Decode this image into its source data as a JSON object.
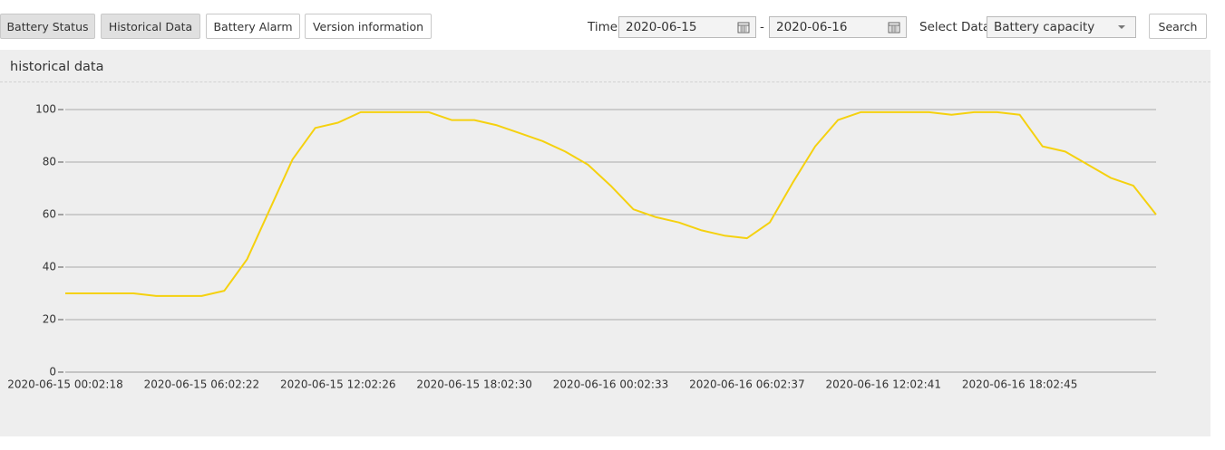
{
  "tabs": [
    "Battery Status",
    "Historical Data",
    "Battery Alarm",
    "Version information"
  ],
  "filters": {
    "time_label": "Time",
    "start_date": "2020-06-15",
    "separator": "-",
    "end_date": "2020-06-16",
    "select_label": "Select Data",
    "selected": "Battery capacity",
    "search": "Search"
  },
  "panel_title": "historical data",
  "chart_data": {
    "type": "line",
    "color": "#f5d10f",
    "grid": true,
    "categories": [
      "2020-06-15 00:02:18",
      null,
      null,
      null,
      null,
      null,
      "2020-06-15 06:02:22",
      null,
      null,
      null,
      null,
      null,
      "2020-06-15 12:02:26",
      null,
      null,
      null,
      null,
      null,
      "2020-06-15 18:02:30",
      null,
      null,
      null,
      null,
      null,
      "2020-06-16 00:02:33",
      null,
      null,
      null,
      null,
      null,
      "2020-06-16 06:02:37",
      null,
      null,
      null,
      null,
      null,
      "2020-06-16 12:02:41",
      null,
      null,
      null,
      null,
      null,
      "2020-06-16 18:02:45",
      null,
      null,
      null,
      null,
      null,
      null
    ],
    "values": [
      30,
      30,
      30,
      30,
      29,
      29,
      29,
      31,
      43,
      62,
      81,
      93,
      95,
      99,
      99,
      99,
      99,
      96,
      96,
      94,
      91,
      88,
      84,
      79,
      71,
      62,
      59,
      57,
      54,
      52,
      51,
      57,
      72,
      86,
      96,
      99,
      99,
      99,
      99,
      98,
      99,
      99,
      98,
      86,
      84,
      79,
      74,
      71,
      60
    ],
    "ylim": [
      0,
      100
    ],
    "yticks": [
      0,
      20,
      40,
      60,
      80,
      100
    ]
  }
}
